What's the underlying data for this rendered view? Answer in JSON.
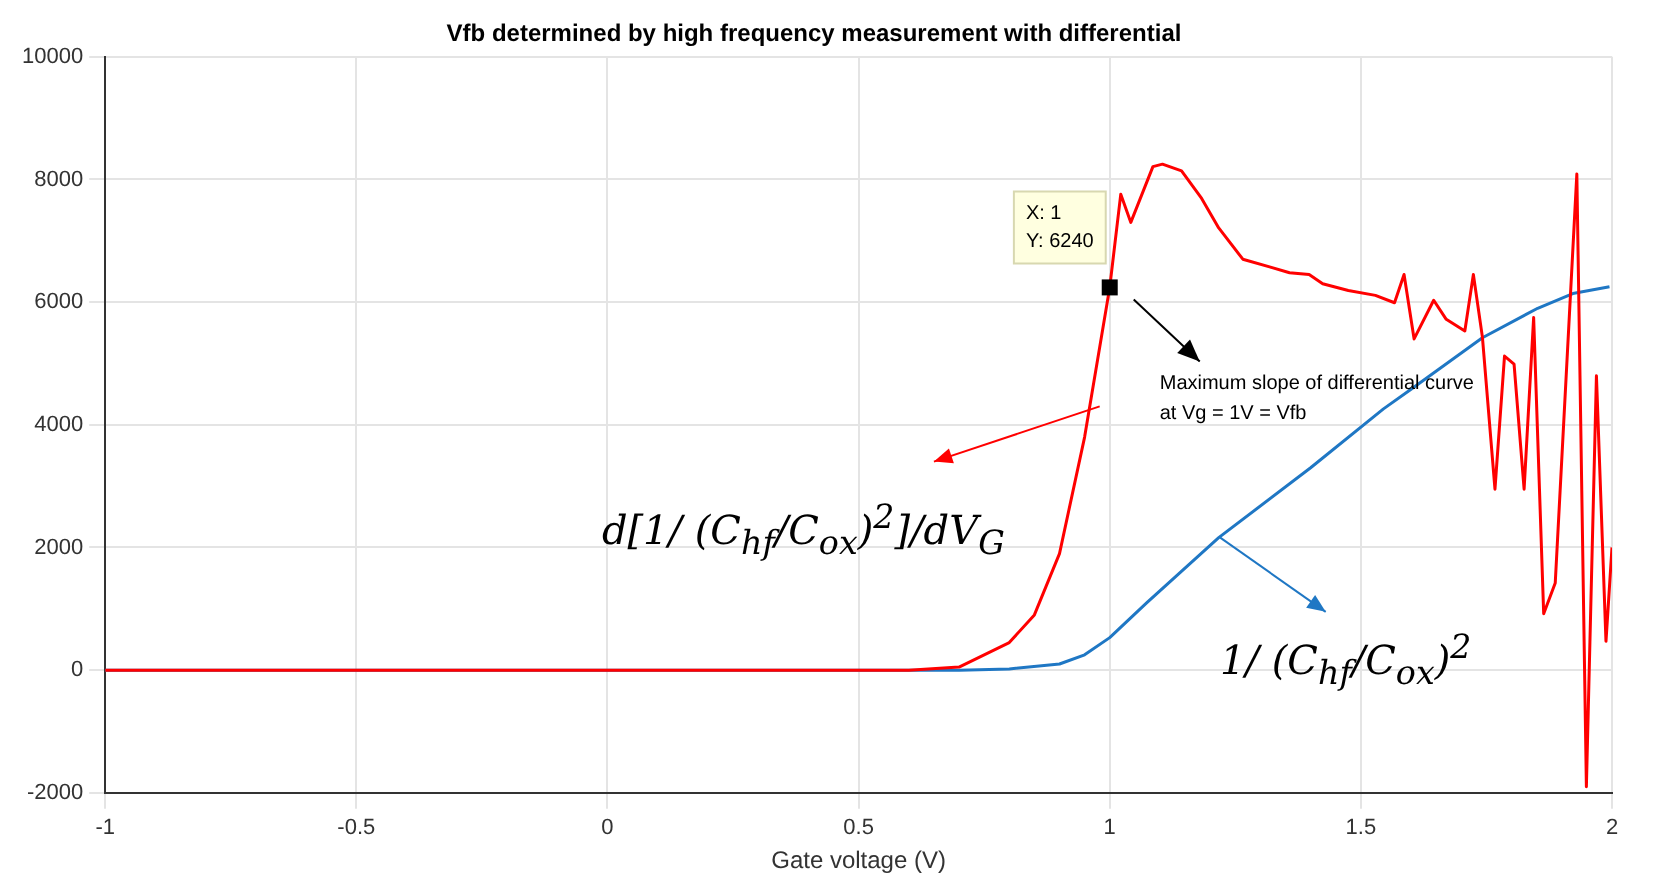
{
  "chart_data": {
    "type": "line",
    "title": "Vfb determined by high frequency measurement with differential",
    "xlabel": "Gate voltage (V)",
    "xlim": [
      -1,
      2
    ],
    "xticks": [
      -1,
      -0.5,
      0,
      0.5,
      1,
      1.5,
      2
    ],
    "ylim": [
      -2000,
      10000
    ],
    "yticks": [
      -2000,
      0,
      2000,
      4000,
      6000,
      8000,
      10000
    ],
    "grid": true,
    "legend": "bottom right",
    "marker": "none",
    "line_style": "solid",
    "series": [
      {
        "name": "d[1/ (C$_{hf}$/C$_{ox}$)$^{2}$]/dV$_{G}$",
        "color": "#ff0000",
        "x": [
          -1,
          0.6,
          0.7,
          0.8,
          0.85,
          0.9,
          0.95,
          1.0,
          1.022,
          1.042,
          1.086,
          1.105,
          1.143,
          1.183,
          1.217,
          1.265,
          1.32,
          1.358,
          1.397,
          1.424,
          1.475,
          1.529,
          1.567,
          1.586,
          1.606,
          1.645,
          1.67,
          1.707,
          1.724,
          1.742,
          1.767,
          1.786,
          1.805,
          1.825,
          1.844,
          1.864,
          1.887,
          1.93,
          1.949,
          1.969,
          1.988,
          2.0
        ],
        "values": [
          0,
          0,
          50,
          450,
          900,
          1900,
          3800,
          6240,
          7760,
          7300,
          8210,
          8250,
          8140,
          7690,
          7210,
          6700,
          6570,
          6480,
          6450,
          6300,
          6190,
          6110,
          5990,
          6450,
          5400,
          6030,
          5720,
          5530,
          6450,
          5430,
          2950,
          5120,
          4990,
          2950,
          5750,
          920,
          1420,
          8090,
          -1900,
          4800,
          470,
          2000
        ]
      },
      {
        "name": "1/ (C$_{hf}$/C$_{ox}$)$^{2}$",
        "color": "#1f77c4",
        "x": [
          -1,
          0.7,
          0.8,
          0.9,
          0.95,
          1.0,
          1.074,
          1.217,
          1.4,
          1.545,
          1.6,
          1.742,
          1.852,
          1.922,
          1.995
        ],
        "values": [
          0,
          0,
          20,
          100,
          250,
          530,
          1100,
          2160,
          3300,
          4260,
          4580,
          5420,
          5900,
          6140,
          6250
        ]
      }
    ],
    "annotations": [
      {
        "text": "X: 1\nY: 6240",
        "x": 1,
        "y": 6240
      },
      "Maximum slope of differential curve\nat Vg = 1V = Vfb"
    ]
  }
}
